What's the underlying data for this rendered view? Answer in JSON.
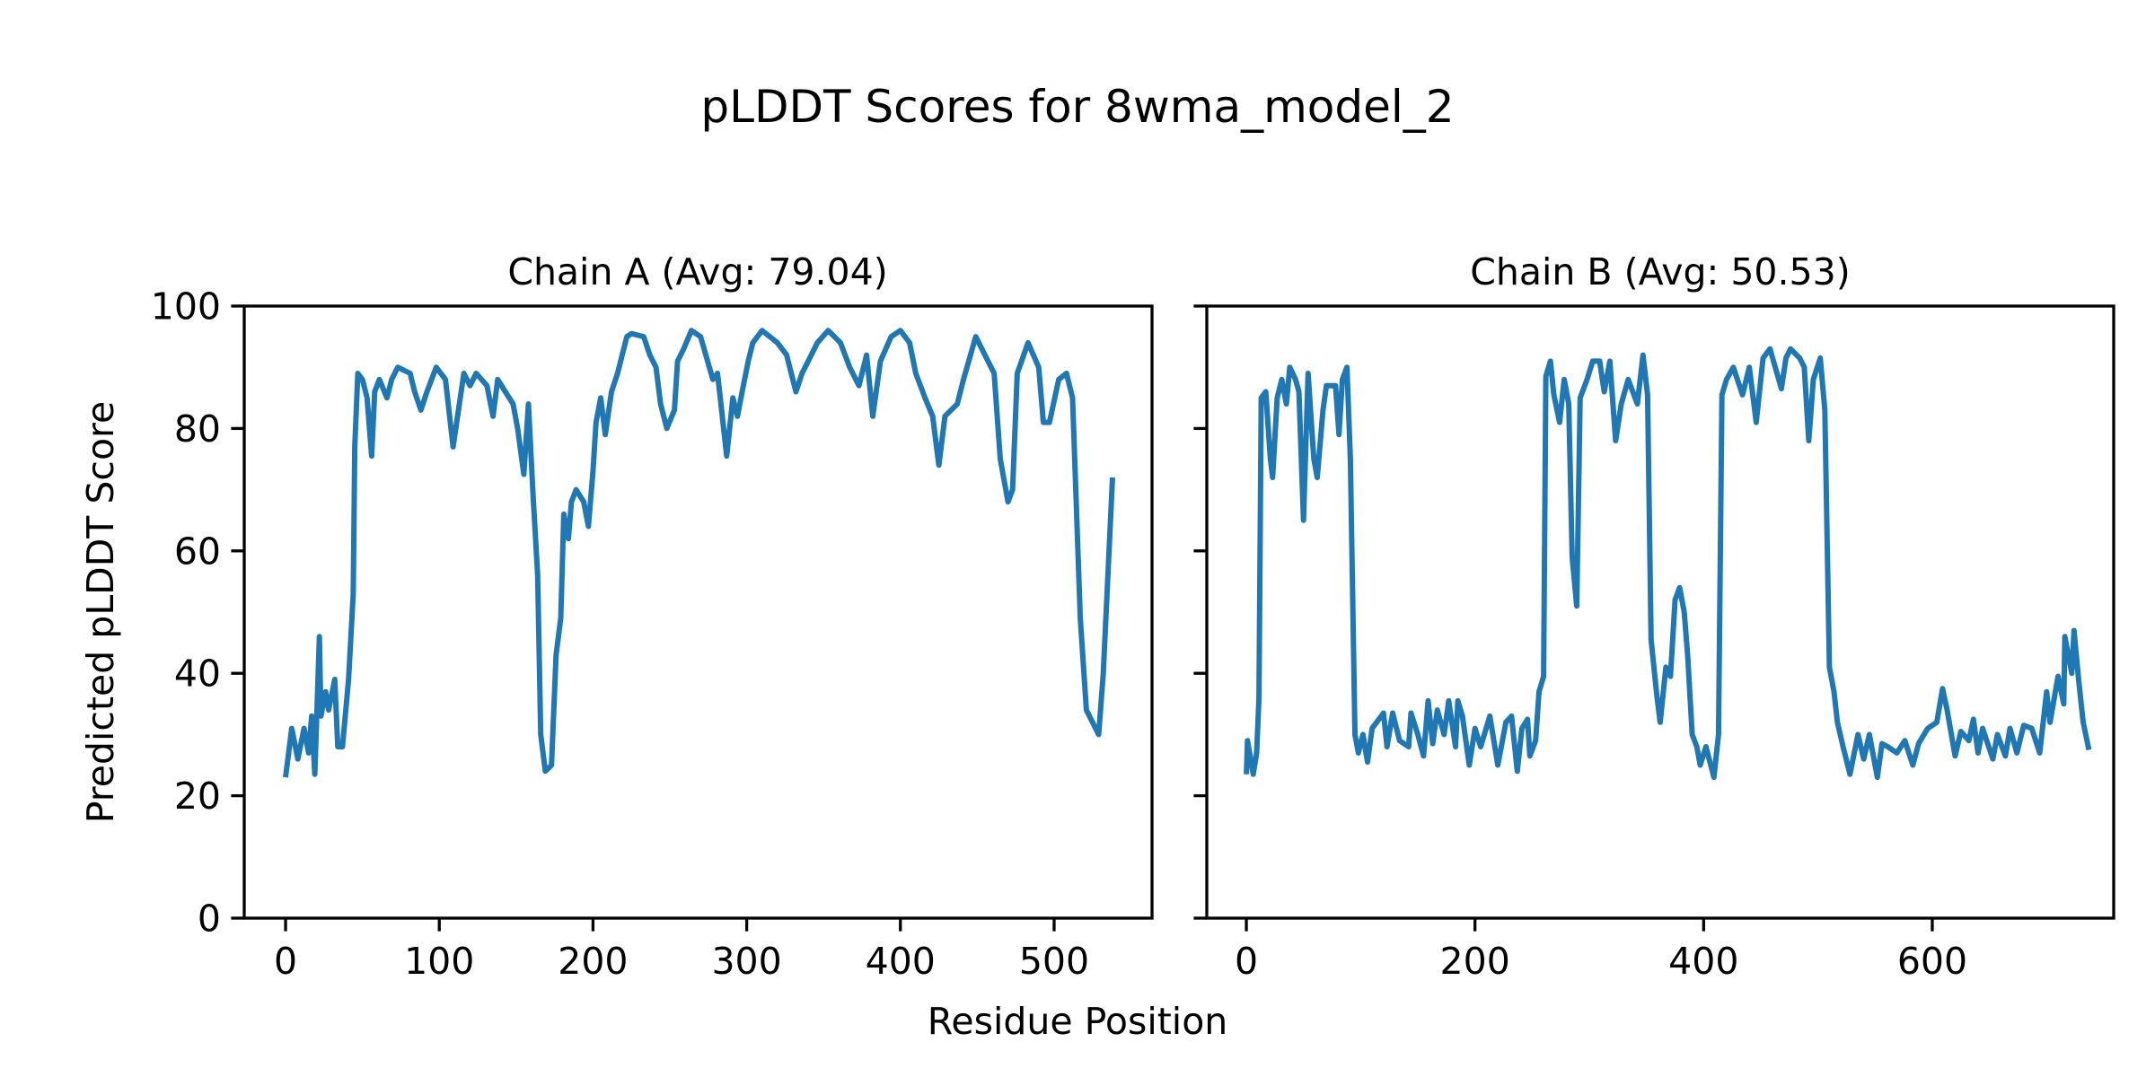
{
  "chart_data": {
    "type": "line",
    "title": "pLDDT Scores for 8wma_model_2",
    "xlabel": "Residue Position",
    "ylabel": "Predicted pLDDT Score",
    "ylim": [
      0,
      100
    ],
    "yticks": [
      0,
      20,
      40,
      60,
      80,
      100
    ],
    "line_color": "#1f77b4",
    "grid": false,
    "panels": [
      {
        "title": "Chain A (Avg: 79.04)",
        "xlim": [
          -26.9,
          563.7
        ],
        "xticks": [
          0,
          100,
          200,
          300,
          400,
          500
        ],
        "x": [
          0,
          4,
          8,
          12,
          15,
          17,
          19,
          22,
          23,
          26,
          28,
          32,
          34,
          37,
          41,
          44,
          45,
          47,
          50,
          53,
          56,
          58,
          61,
          66,
          69,
          73,
          81,
          84,
          88,
          92,
          98,
          104,
          109,
          116,
          120,
          124,
          131,
          135,
          138,
          143,
          148,
          151,
          155,
          158,
          161,
          164,
          166,
          169,
          173,
          176,
          179,
          181,
          184,
          186,
          189,
          194,
          197,
          200,
          202,
          205,
          208,
          212,
          216,
          219,
          222,
          225,
          233,
          237,
          241,
          244,
          248,
          253,
          255,
          259,
          264,
          270,
          278,
          281,
          287,
          291,
          294,
          297,
          301,
          304,
          310,
          320,
          326,
          332,
          336,
          340,
          346,
          353,
          361,
          367,
          373,
          378,
          382,
          387,
          394,
          400,
          406,
          410,
          416,
          421,
          425,
          429,
          437,
          441,
          449,
          455,
          461,
          465,
          470,
          473,
          476,
          483,
          490,
          493,
          497,
          503,
          508,
          512,
          517,
          521,
          529,
          532,
          538
        ],
        "y": [
          23,
          31,
          26,
          31,
          27,
          33,
          23.5,
          46,
          33,
          37,
          34,
          39,
          28,
          28,
          39,
          53,
          77,
          89,
          88,
          85,
          75.5,
          86,
          88,
          85,
          88,
          90,
          89,
          86,
          83,
          86,
          90,
          88,
          77,
          89,
          87,
          89,
          87,
          82,
          88,
          86,
          84,
          80,
          72.5,
          84,
          69,
          56,
          30,
          24,
          25,
          43,
          49,
          66,
          62,
          68,
          70,
          68,
          64,
          73,
          81,
          85,
          79,
          86,
          89,
          92,
          95,
          95.5,
          95,
          92,
          90,
          84,
          80,
          83,
          91,
          93,
          96,
          95,
          88,
          89,
          75.5,
          85,
          82,
          86,
          91,
          94,
          96,
          94,
          92,
          86,
          89,
          91,
          94,
          96,
          94,
          90,
          87,
          92,
          82,
          91,
          95,
          96,
          94,
          89,
          85,
          82,
          74,
          82,
          84,
          88,
          95,
          92,
          89,
          75,
          68,
          70,
          89,
          94,
          90,
          81,
          81,
          88,
          89,
          85,
          49,
          34,
          30,
          40,
          72
        ]
      },
      {
        "title": "Chain B (Avg: 50.53)",
        "xlim": [
          -34.6,
          758.7
        ],
        "xticks": [
          0,
          200,
          400,
          600
        ],
        "x": [
          0,
          1,
          6,
          9,
          11,
          13,
          17,
          21,
          23,
          27,
          31,
          35,
          38,
          43,
          46,
          50,
          54,
          59,
          62,
          67,
          70,
          78,
          81,
          84,
          88,
          91,
          95,
          98,
          102,
          106,
          110,
          120,
          123,
          128,
          134,
          142,
          144,
          150,
          155,
          159,
          163,
          167,
          173,
          177,
          183,
          185,
          189,
          195,
          200,
          205,
          213,
          220,
          227,
          232,
          237,
          241,
          246,
          248,
          253,
          256,
          260,
          262,
          266,
          269,
          274,
          278,
          282,
          285,
          289,
          292,
          298,
          303,
          309,
          313,
          318,
          323,
          328,
          334,
          342,
          347,
          351,
          354,
          359,
          362,
          367,
          371,
          375,
          379,
          383,
          386,
          390,
          394,
          397,
          402,
          409,
          413,
          416,
          420,
          426,
          434,
          440,
          446,
          452,
          458,
          468,
          472,
          476,
          484,
          488,
          492,
          496,
          502,
          506,
          510,
          514,
          517,
          522,
          528,
          535,
          540,
          545,
          552,
          556,
          561,
          569,
          576,
          583,
          588,
          596,
          604,
          609,
          613,
          620,
          625,
          632,
          636,
          640,
          644,
          653,
          657,
          664,
          668,
          674,
          680,
          687,
          694,
          700,
          703,
          710,
          715,
          716,
          722,
          724,
          728,
          732,
          737
        ],
        "y": [
          23.5,
          29,
          23.5,
          27,
          36,
          85,
          86,
          75,
          72,
          85,
          88,
          84,
          90,
          88,
          86,
          65,
          89,
          75,
          72,
          83,
          87,
          87,
          79,
          88,
          90,
          75,
          30,
          27,
          30,
          25.5,
          31,
          33.5,
          28,
          33.5,
          29,
          28,
          33.5,
          30,
          26.5,
          35.5,
          28.5,
          34,
          30,
          35.5,
          28,
          35.5,
          33,
          25,
          31,
          28,
          33,
          25,
          32,
          33,
          24,
          31,
          32.5,
          26.5,
          29,
          37,
          39.5,
          88.5,
          91,
          85.5,
          81,
          88,
          84,
          59,
          51,
          85,
          88,
          91,
          91,
          86,
          91,
          78,
          84,
          88,
          84,
          92,
          85.5,
          45.5,
          36.5,
          32,
          41,
          39.5,
          52,
          54,
          50,
          43,
          30,
          28,
          25,
          28,
          23,
          30,
          85.5,
          88,
          90,
          85.5,
          90,
          81,
          91.5,
          93,
          86.5,
          91.5,
          93,
          91.5,
          90,
          78,
          88,
          91.5,
          83,
          41,
          37,
          32,
          28,
          23.5,
          30,
          26,
          30,
          23,
          28.5,
          28,
          27,
          29,
          25,
          28.5,
          31,
          32,
          37.5,
          34,
          26.5,
          30.5,
          29,
          32.5,
          27,
          31,
          26,
          30,
          26.5,
          31,
          27,
          31.5,
          31,
          27,
          37,
          32,
          39.5,
          35,
          46,
          40,
          47,
          39,
          32,
          27.5
        ]
      }
    ]
  }
}
